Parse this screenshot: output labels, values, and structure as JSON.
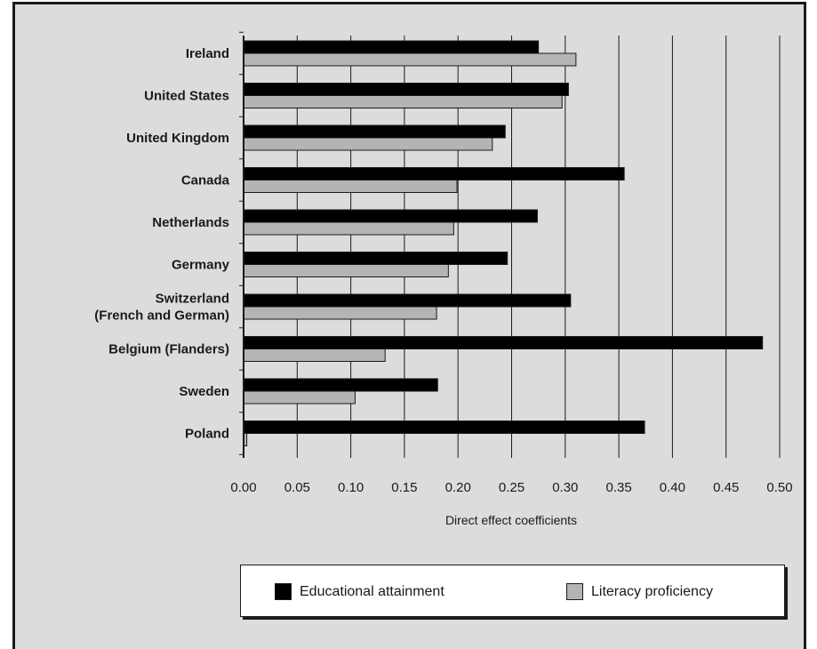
{
  "chart_data": {
    "type": "bar",
    "orientation": "horizontal",
    "categories": [
      [
        "Ireland"
      ],
      [
        "United States"
      ],
      [
        "United Kingdom"
      ],
      [
        "Canada"
      ],
      [
        "Netherlands"
      ],
      [
        "Germany"
      ],
      [
        "Switzerland",
        "(French and German)"
      ],
      [
        "Belgium (Flanders)"
      ],
      [
        "Sweden"
      ],
      [
        "Poland"
      ]
    ],
    "series": [
      {
        "name": "Educational attainment",
        "color": "#000000",
        "values": [
          0.275,
          0.303,
          0.244,
          0.355,
          0.274,
          0.246,
          0.305,
          0.484,
          0.181,
          0.374
        ]
      },
      {
        "name": "Literacy proficiency",
        "color": "#b4b4b4",
        "values": [
          0.31,
          0.297,
          0.232,
          0.199,
          0.196,
          0.191,
          0.18,
          0.132,
          0.104,
          0.003
        ]
      }
    ],
    "xlabel": "Direct effect coefficients",
    "xlim": [
      0,
      0.5
    ],
    "xticks": [
      "0.00",
      "0.05",
      "0.10",
      "0.15",
      "0.20",
      "0.25",
      "0.30",
      "0.35",
      "0.40",
      "0.45",
      "0.50"
    ],
    "grid": "vertical",
    "legend_position": "bottom"
  }
}
